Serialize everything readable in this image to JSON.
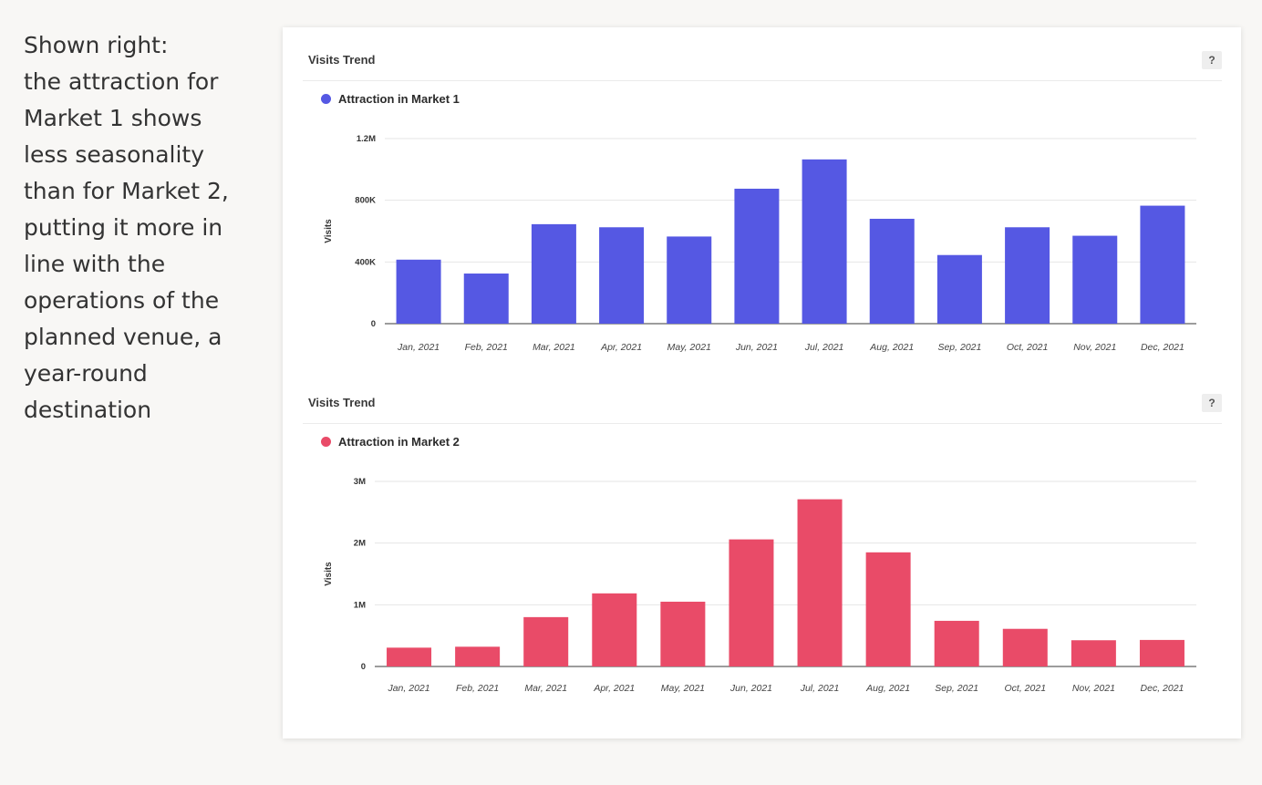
{
  "caption": {
    "lines": [
      "Shown right:",
      "the attraction for",
      "Market 1 shows",
      "less seasonality",
      "than for Market 2,",
      "putting it more in",
      "line with the",
      "operations of the",
      "planned venue, a",
      "year-round",
      "destination"
    ]
  },
  "help_label": "?",
  "chart_data": [
    {
      "type": "bar",
      "title": "Visits Trend",
      "series_name": "Attraction in Market 1",
      "color": "#5558e3",
      "ylabel": "Visits",
      "xlabel": "",
      "ylim": [
        0,
        1200000
      ],
      "yticks": [
        0,
        400000,
        800000,
        1200000
      ],
      "ytick_labels": [
        "0",
        "400K",
        "800K",
        "1.2M"
      ],
      "categories": [
        "Jan, 2021",
        "Feb, 2021",
        "Mar, 2021",
        "Apr, 2021",
        "May, 2021",
        "Jun, 2021",
        "Jul, 2021",
        "Aug, 2021",
        "Sep, 2021",
        "Oct, 2021",
        "Nov, 2021",
        "Dec, 2021"
      ],
      "values": [
        415000,
        325000,
        645000,
        625000,
        565000,
        875000,
        1065000,
        680000,
        445000,
        625000,
        570000,
        765000
      ],
      "grid": true,
      "legend": "top-left"
    },
    {
      "type": "bar",
      "title": "Visits Trend",
      "series_name": "Attraction in Market 2",
      "color": "#e94b68",
      "ylabel": "Visits",
      "xlabel": "",
      "ylim": [
        0,
        3000000
      ],
      "yticks": [
        0,
        1000000,
        2000000,
        3000000
      ],
      "ytick_labels": [
        "0",
        "1M",
        "2M",
        "3M"
      ],
      "categories": [
        "Jan, 2021",
        "Feb, 2021",
        "Mar, 2021",
        "Apr, 2021",
        "May, 2021",
        "Jun, 2021",
        "Jul, 2021",
        "Aug, 2021",
        "Sep, 2021",
        "Oct, 2021",
        "Nov, 2021",
        "Dec, 2021"
      ],
      "values": [
        305000,
        320000,
        800000,
        1185000,
        1050000,
        2060000,
        2710000,
        1850000,
        740000,
        610000,
        425000,
        430000
      ],
      "grid": true,
      "legend": "top-left"
    }
  ]
}
